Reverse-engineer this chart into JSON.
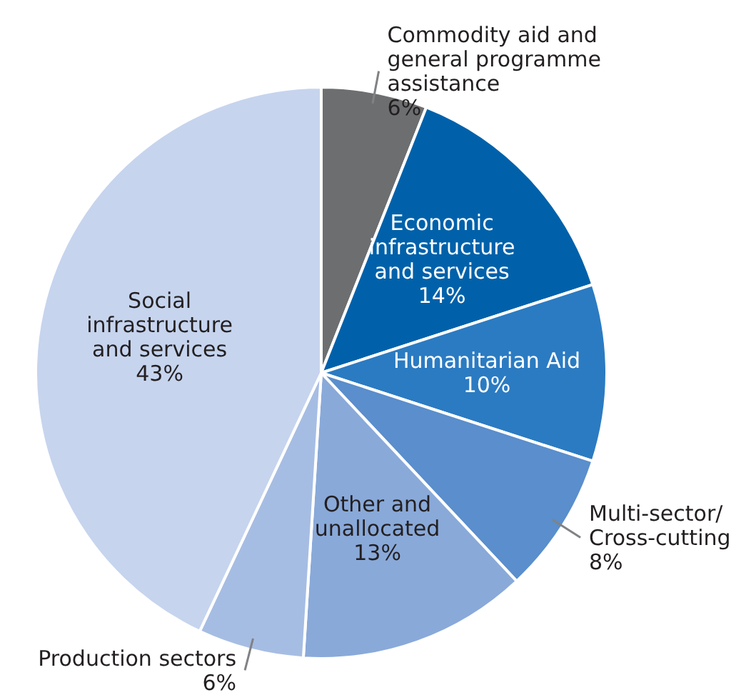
{
  "chart_data": {
    "type": "pie",
    "categories": [
      "Commodity aid and general programme assistance",
      "Economic infrastructure and services",
      "Humanitarian Aid",
      "Multi-sector/ Cross-cutting",
      "Other and unallocated",
      "Production sectors",
      "Social infrastructure and services"
    ],
    "values": [
      6,
      14,
      10,
      8,
      13,
      6,
      43
    ],
    "value_labels": [
      "6%",
      "14%",
      "10%",
      "8%",
      "13%",
      "6%",
      "43%"
    ],
    "colors": [
      "#6d6e70",
      "#0061aa",
      "#2b7bc2",
      "#5a8ecc",
      "#89a9d9",
      "#a6bde3",
      "#c6d4ee"
    ],
    "legend": false
  }
}
